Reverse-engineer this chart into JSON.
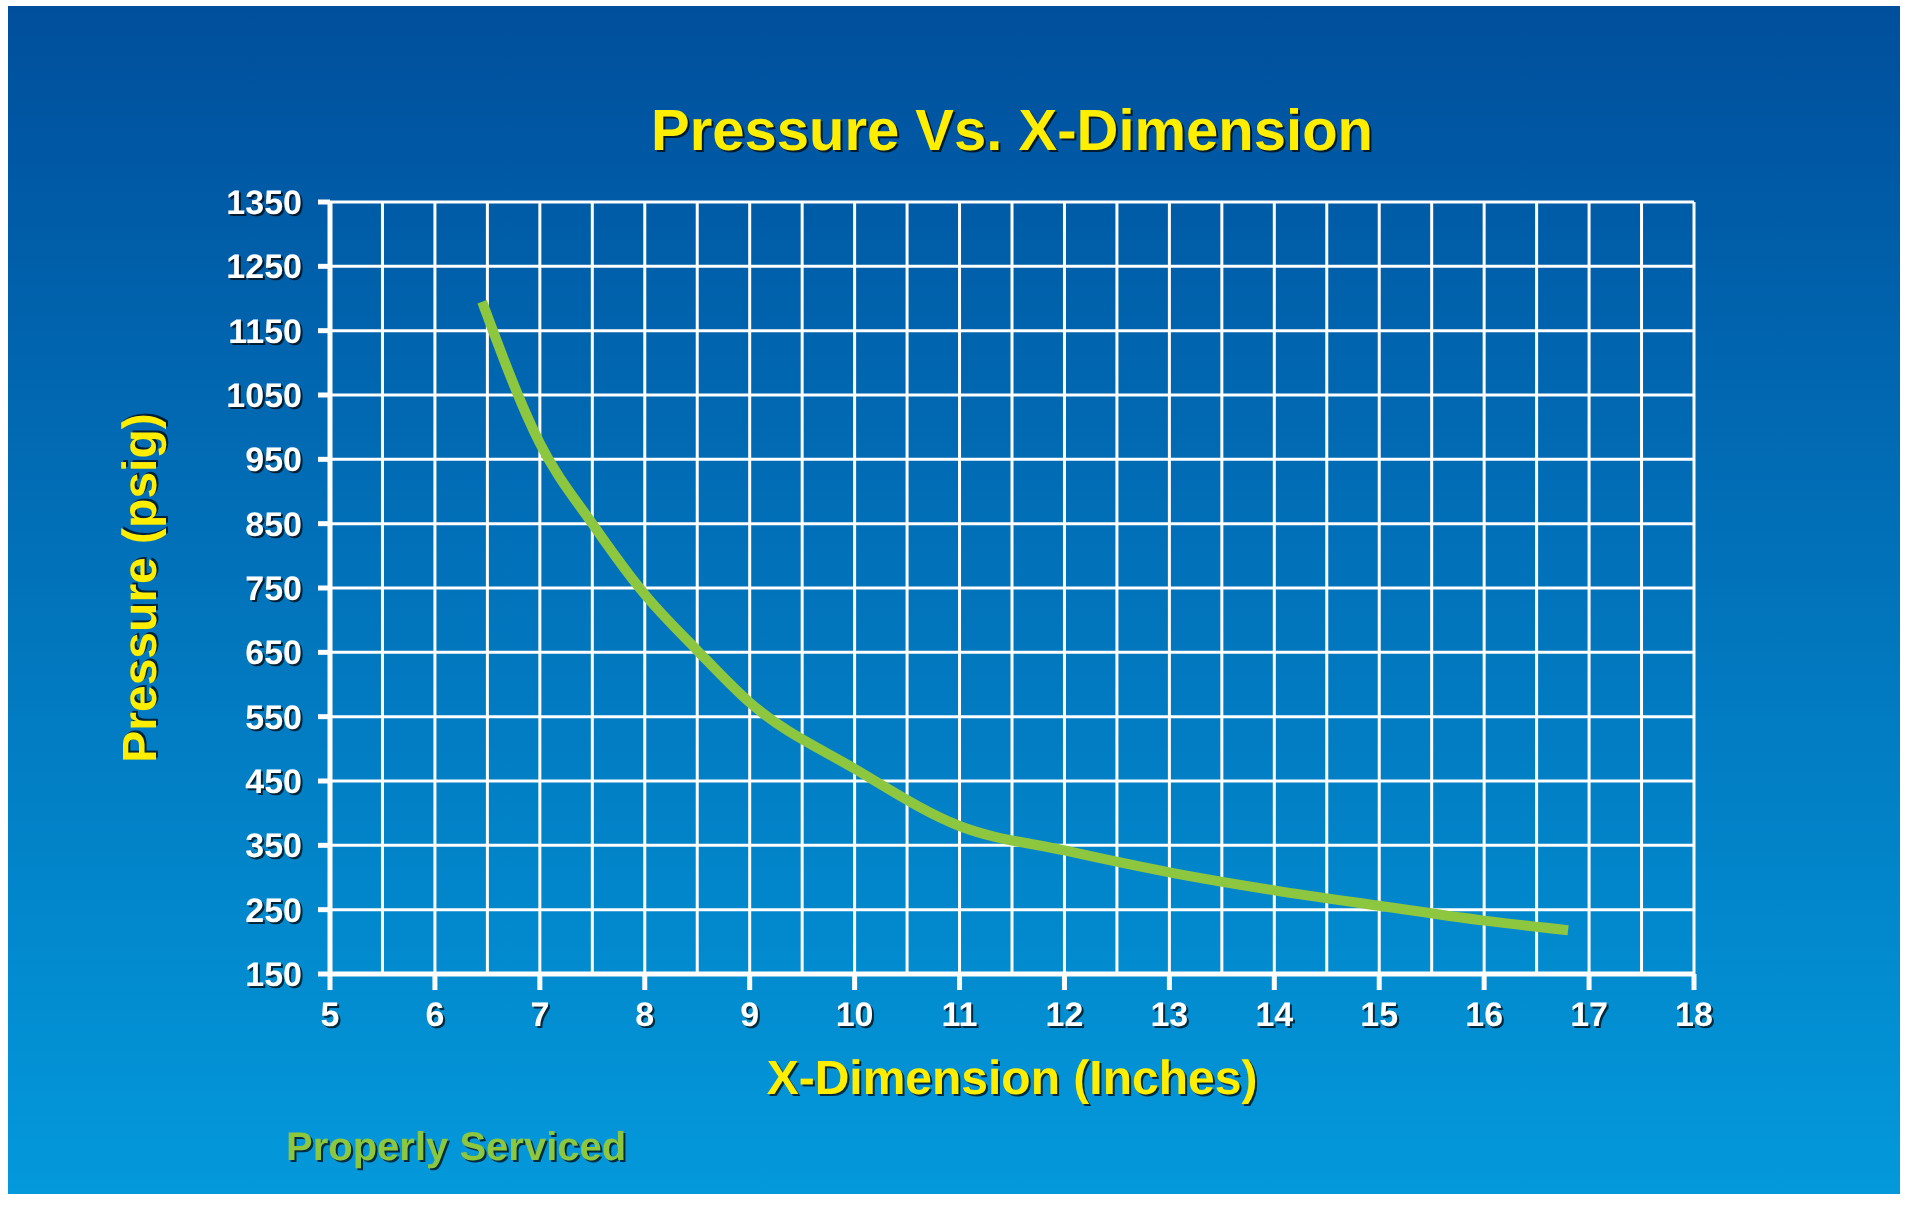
{
  "chart_data": {
    "type": "line",
    "title": "Pressure Vs. X-Dimension",
    "xlabel": "X-Dimension (Inches)",
    "ylabel": "Pressure (psig)",
    "xlim": [
      5,
      18
    ],
    "xticks": [
      5,
      6,
      7,
      8,
      9,
      10,
      11,
      12,
      13,
      14,
      15,
      16,
      17,
      18
    ],
    "ylim": [
      150,
      1350
    ],
    "yticks": [
      150,
      250,
      350,
      450,
      550,
      650,
      750,
      850,
      950,
      1050,
      1150,
      1250,
      1350
    ],
    "grid": true,
    "legend": "bottom left",
    "marker": "none",
    "line_style": "solid",
    "series": [
      {
        "name": "Properly Serviced",
        "color": "#8dc63f",
        "x": [
          6.45,
          7,
          7.5,
          8,
          8.5,
          9,
          10,
          11,
          12,
          13,
          14,
          15,
          16,
          16.8
        ],
        "values": [
          1195,
          975,
          850,
          740,
          653,
          572,
          469,
          380,
          342,
          308,
          280,
          256,
          233,
          218
        ]
      }
    ]
  }
}
